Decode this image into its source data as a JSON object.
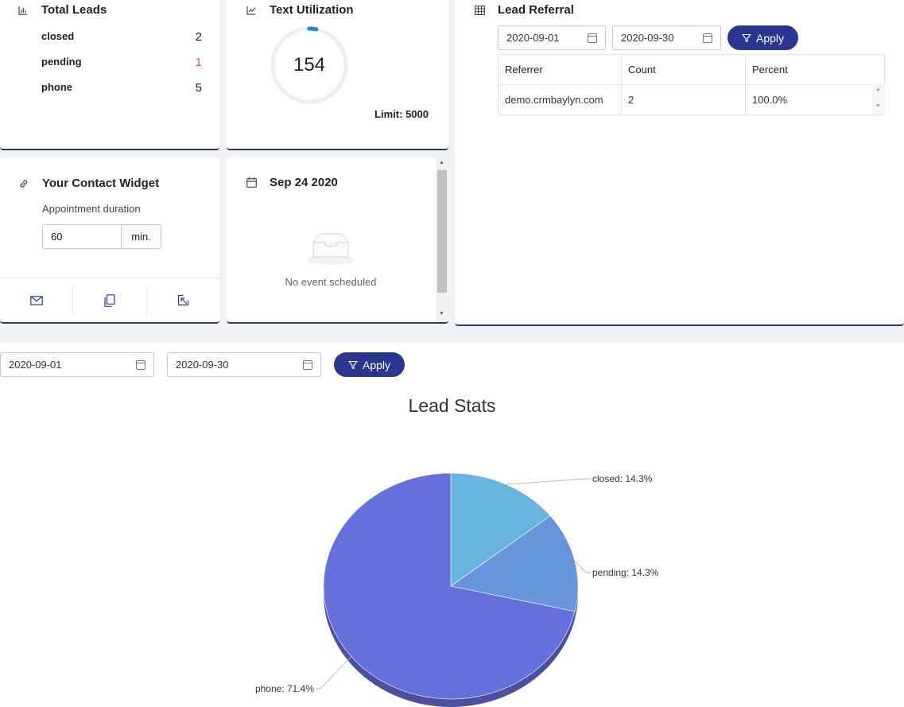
{
  "total_leads": {
    "title": "Total Leads",
    "icon": "bar-chart-icon",
    "rows": [
      {
        "label": "closed",
        "value": "2"
      },
      {
        "label": "pending",
        "value": "1",
        "color": "#e0454a"
      },
      {
        "label": "phone",
        "value": "5"
      }
    ]
  },
  "text_utilization": {
    "title": "Text Utilization",
    "icon": "line-chart-icon",
    "value": "154",
    "limit_label": "Limit: 5000",
    "used_fraction": 0.0308
  },
  "lead_referral": {
    "title": "Lead Referral",
    "icon": "table-icon",
    "date_from": "2020-09-01",
    "date_to": "2020-09-30",
    "apply_label": "Apply",
    "columns": [
      "Referrer",
      "Count",
      "Percent"
    ],
    "rows": [
      [
        "demo.crmbaylyn.com",
        "2",
        "100.0%"
      ]
    ]
  },
  "contact_widget": {
    "title": "Your Contact Widget",
    "icon": "link-icon",
    "subtitle": "Appointment duration",
    "duration_value": "60",
    "duration_unit": "min.",
    "footer_icons": [
      "mail-icon",
      "copy-icon",
      "external-link-icon"
    ]
  },
  "calendar": {
    "title": "Sep 24 2020",
    "icon": "calendar-icon",
    "empty_text": "No event scheduled"
  },
  "lead_stats": {
    "date_from": "2020-09-01",
    "date_to": "2020-09-30",
    "apply_label": "Apply"
  },
  "chart_data": {
    "type": "pie",
    "title": "Lead Stats",
    "slices": [
      {
        "name": "closed",
        "value": 14.3,
        "label": "closed: 14.3%",
        "color": "#69b4de"
      },
      {
        "name": "pending",
        "value": 14.3,
        "label": "pending: 14.3%",
        "color": "#6896dd"
      },
      {
        "name": "phone",
        "value": 71.4,
        "label": "phone: 71.4%",
        "color": "#6670dc"
      }
    ]
  }
}
